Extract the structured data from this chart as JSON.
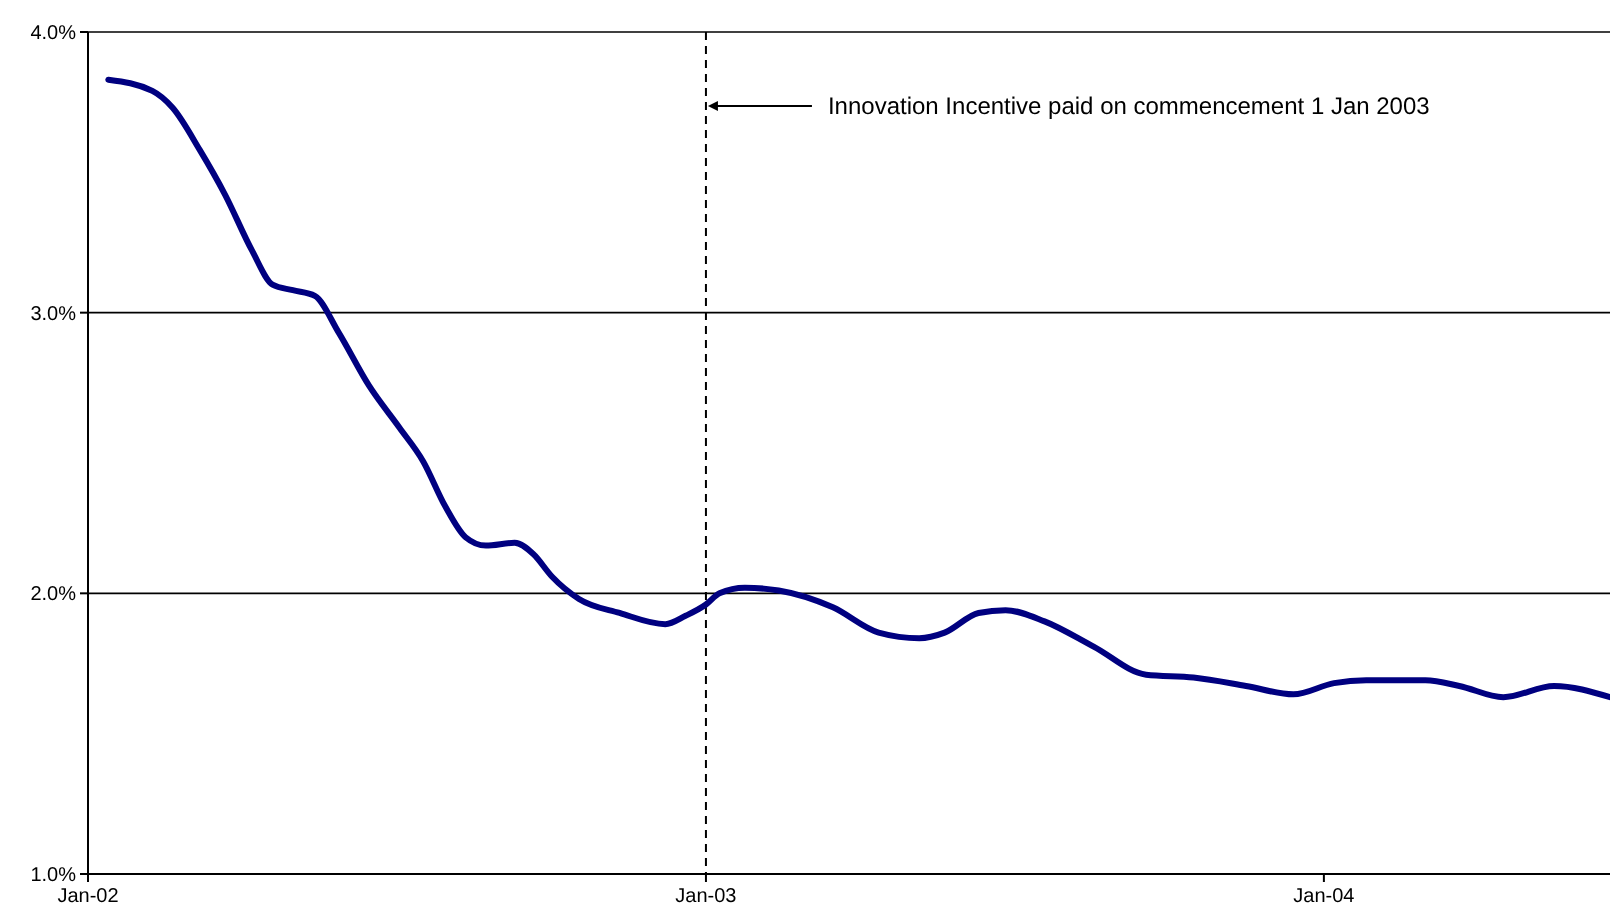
{
  "chart_data": {
    "type": "line",
    "x": [
      "2002-01-13",
      "2002-02-08",
      "2002-02-20",
      "2002-03-08",
      "2002-03-23",
      "2002-04-08",
      "2002-04-20",
      "2002-05-02",
      "2002-05-15",
      "2002-05-29",
      "2002-06-16",
      "2002-07-04",
      "2002-07-18",
      "2002-07-31",
      "2002-08-12",
      "2002-08-24",
      "2002-09-10",
      "2002-09-21",
      "2002-10-02",
      "2002-10-18",
      "2002-11-11",
      "2002-12-08",
      "2002-12-20",
      "2003-01-01",
      "2003-01-09",
      "2003-01-24",
      "2003-02-13",
      "2003-03-17",
      "2003-04-13",
      "2003-05-07",
      "2003-05-22",
      "2003-06-11",
      "2003-06-27",
      "2003-07-20",
      "2003-08-18",
      "2003-09-18",
      "2003-10-16",
      "2003-11-16",
      "2003-12-14",
      "2004-01-07",
      "2004-01-26",
      "2004-03-01",
      "2004-03-21",
      "2004-04-16",
      "2004-05-16",
      "2004-06-18"
    ],
    "series": [
      {
        "color": "#000080",
        "values": [
          3.83,
          3.79,
          3.73,
          3.58,
          3.42,
          3.22,
          3.1,
          3.08,
          3.06,
          2.93,
          2.74,
          2.59,
          2.47,
          2.31,
          2.2,
          2.17,
          2.18,
          2.14,
          2.06,
          1.98,
          1.93,
          1.89,
          1.92,
          1.96,
          2.0,
          2.02,
          2.01,
          1.95,
          1.86,
          1.84,
          1.86,
          1.93,
          1.94,
          1.9,
          1.81,
          1.71,
          1.7,
          1.67,
          1.64,
          1.68,
          1.69,
          1.69,
          1.67,
          1.63,
          1.67,
          1.63
        ]
      }
    ],
    "xlim": [
      "2002-01-01",
      "2004-06-18"
    ],
    "xticks": [
      {
        "value": "2002-01-01",
        "label": "Jan-02"
      },
      {
        "value": "2003-01-01",
        "label": "Jan-03"
      },
      {
        "value": "2004-01-01",
        "label": "Jan-04"
      }
    ],
    "ylim": [
      1,
      4
    ],
    "yticks": [
      {
        "value": 1,
        "label": "1.0%"
      },
      {
        "value": 2,
        "label": "2.0%"
      },
      {
        "value": 3,
        "label": "3.0%"
      },
      {
        "value": 4,
        "label": "4.0%"
      }
    ],
    "grid": "y",
    "marker": "none",
    "line_style": "solid",
    "ref_lines": [
      {
        "axis": "x",
        "value": "2003-01-01",
        "label": "Innovation Incentive paid on commencement 1 Jan 2003",
        "color": "#000000",
        "line_style": "dashed"
      }
    ]
  }
}
